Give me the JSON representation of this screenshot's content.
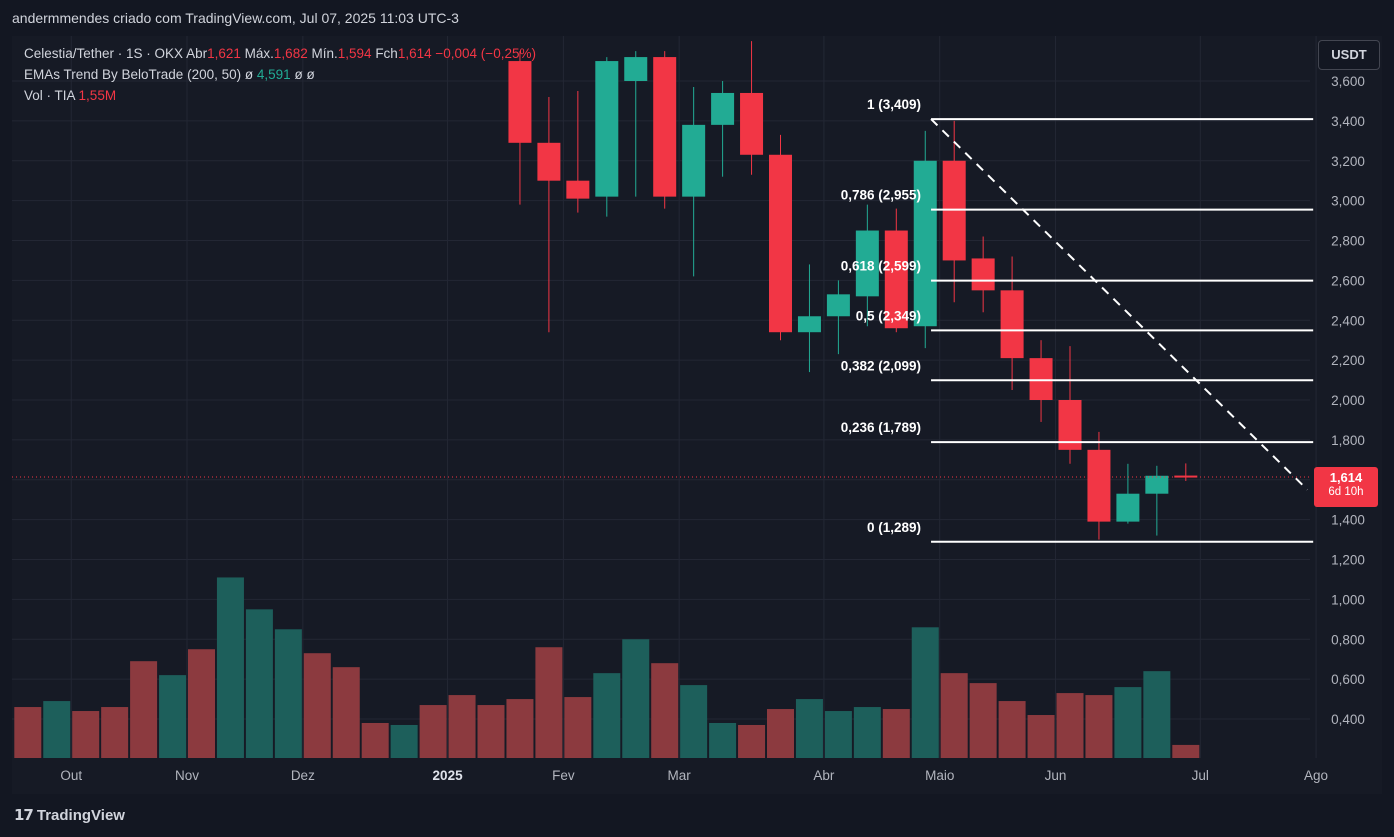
{
  "header": {
    "caption": "andermmendes criado com TradingView.com, Jul 07, 2025 11:03 UTC-3"
  },
  "legend": {
    "symbol": "Celestia/Tether · 1S · OKX",
    "open_label": "Abr",
    "open_value": "1,621",
    "high_label": "Máx.",
    "high_value": "1,682",
    "low_label": "Mín.",
    "low_value": "1,594",
    "close_label": "Fch",
    "close_value": "1,614",
    "change_value": "−0,004 (−0,25%)",
    "ema_name": "EMAs Trend By BeloTrade (200, 50)",
    "ema_val1": "ø",
    "ema_val2": "4,591",
    "ema_val3": "ø",
    "ema_val4": "ø",
    "vol_name": "Vol · TIA",
    "vol_value": "1,55M"
  },
  "currency_button": "USDT",
  "last_price": {
    "value": "1,614",
    "countdown": "6d 10h",
    "price": 1.614
  },
  "branding": {
    "logo_mark": "17",
    "logo_text": "TradingView"
  },
  "colors": {
    "up": "#22ab94",
    "down": "#f23645",
    "up_volume": "#1d5f5b",
    "down_volume": "#8c3a3f",
    "background": "#161a25",
    "grid": "#232734",
    "fib_line": "#ffffff"
  },
  "chart_data": {
    "type": "candlestick",
    "timeframe": "1S",
    "y_axis": {
      "ticks": [
        "3,600",
        "3,400",
        "3,200",
        "3,000",
        "2,800",
        "2,600",
        "2,400",
        "2,200",
        "2,000",
        "1,800",
        "1,600",
        "1,400",
        "1,200",
        "1,000",
        "0,800",
        "0,600",
        "0,400"
      ],
      "range": [
        0.25,
        3.7
      ]
    },
    "x_axis": {
      "labels": [
        "Out",
        "Nov",
        "Dez",
        "2025",
        "Fev",
        "Mar",
        "Abr",
        "Maio",
        "Jun",
        "Jul",
        "Ago"
      ],
      "label_week_index": [
        1.5,
        5.5,
        9.5,
        14.5,
        18.5,
        22.5,
        27.5,
        31.5,
        35.5,
        40.5,
        44.5
      ]
    },
    "candles": [
      {
        "i": 17,
        "o": 3.7,
        "h": 3.75,
        "l": 2.98,
        "c": 3.29
      },
      {
        "i": 18,
        "o": 3.29,
        "h": 3.52,
        "l": 2.34,
        "c": 3.1
      },
      {
        "i": 19,
        "o": 3.1,
        "h": 3.55,
        "l": 2.94,
        "c": 3.01
      },
      {
        "i": 20,
        "o": 3.02,
        "h": 3.72,
        "l": 2.92,
        "c": 3.7
      },
      {
        "i": 21,
        "o": 3.6,
        "h": 3.75,
        "l": 3.02,
        "c": 3.72
      },
      {
        "i": 22,
        "o": 3.72,
        "h": 3.75,
        "l": 2.96,
        "c": 3.02
      },
      {
        "i": 23,
        "o": 3.02,
        "h": 3.57,
        "l": 2.62,
        "c": 3.38
      },
      {
        "i": 24,
        "o": 3.38,
        "h": 3.6,
        "l": 3.12,
        "c": 3.54
      },
      {
        "i": 25,
        "o": 3.54,
        "h": 3.8,
        "l": 3.13,
        "c": 3.23
      },
      {
        "i": 26,
        "o": 3.23,
        "h": 3.33,
        "l": 2.3,
        "c": 2.34
      },
      {
        "i": 27,
        "o": 2.34,
        "h": 2.68,
        "l": 2.14,
        "c": 2.42
      },
      {
        "i": 28,
        "o": 2.42,
        "h": 2.6,
        "l": 2.23,
        "c": 2.53
      },
      {
        "i": 29,
        "o": 2.52,
        "h": 2.98,
        "l": 2.37,
        "c": 2.85
      },
      {
        "i": 30,
        "o": 2.85,
        "h": 2.96,
        "l": 2.34,
        "c": 2.36
      },
      {
        "i": 31,
        "o": 2.37,
        "h": 3.35,
        "l": 2.26,
        "c": 3.2
      },
      {
        "i": 32,
        "o": 3.2,
        "h": 3.4,
        "l": 2.49,
        "c": 2.7
      },
      {
        "i": 33,
        "o": 2.71,
        "h": 2.82,
        "l": 2.44,
        "c": 2.55
      },
      {
        "i": 34,
        "o": 2.55,
        "h": 2.72,
        "l": 2.05,
        "c": 2.21
      },
      {
        "i": 35,
        "o": 2.21,
        "h": 2.3,
        "l": 1.89,
        "c": 2.0
      },
      {
        "i": 36,
        "o": 2.0,
        "h": 2.27,
        "l": 1.68,
        "c": 1.75
      },
      {
        "i": 37,
        "o": 1.75,
        "h": 1.84,
        "l": 1.3,
        "c": 1.39
      },
      {
        "i": 38,
        "o": 1.39,
        "h": 1.68,
        "l": 1.38,
        "c": 1.53
      },
      {
        "i": 39,
        "o": 1.53,
        "h": 1.67,
        "l": 1.32,
        "c": 1.62
      },
      {
        "i": 40,
        "o": 1.621,
        "h": 1.682,
        "l": 1.594,
        "c": 1.614
      }
    ],
    "volume": {
      "heights": [
        0.46,
        0.49,
        0.44,
        0.46,
        0.69,
        0.62,
        0.75,
        1.11,
        0.95,
        0.85,
        0.73,
        0.66,
        0.38,
        0.37,
        0.47,
        0.52,
        0.47,
        0.5,
        0.76,
        0.51,
        0.63,
        0.8,
        0.68,
        0.57,
        0.38,
        0.37,
        0.45,
        0.5,
        0.44,
        0.46,
        0.45,
        0.86,
        0.63,
        0.58,
        0.49,
        0.42,
        0.53,
        0.52,
        0.56,
        0.64,
        0.27
      ],
      "up": [
        false,
        true,
        false,
        false,
        false,
        true,
        false,
        true,
        true,
        true,
        false,
        false,
        false,
        true,
        false,
        false,
        false,
        false,
        false,
        false,
        true,
        true,
        false,
        true,
        true,
        false,
        false,
        true,
        true,
        true,
        false,
        true,
        false,
        false,
        false,
        false,
        false,
        false,
        true,
        true,
        false
      ],
      "label": "Vol · TIA",
      "last": "1,55M"
    },
    "fibonacci": {
      "anchor_week": 31.2,
      "end_week": 44.4,
      "levels": [
        {
          "ratio": "1",
          "price": 3.409,
          "label": "1 (3,409)"
        },
        {
          "ratio": "0,786",
          "price": 2.955,
          "label": "0,786 (2,955)"
        },
        {
          "ratio": "0,618",
          "price": 2.599,
          "label": "0,618 (2,599)"
        },
        {
          "ratio": "0,5",
          "price": 2.349,
          "label": "0,5 (2,349)"
        },
        {
          "ratio": "0,382",
          "price": 2.099,
          "label": "0,382 (2,099)"
        },
        {
          "ratio": "0,236",
          "price": 1.789,
          "label": "0,236 (1,789)"
        },
        {
          "ratio": "0",
          "price": 1.289,
          "label": "0 (1,289)"
        }
      ]
    },
    "trendline": {
      "from_week": 31.2,
      "from_price": 3.409,
      "to_week": 44.2,
      "to_price": 1.55,
      "style": "dashed"
    },
    "grid": true
  }
}
